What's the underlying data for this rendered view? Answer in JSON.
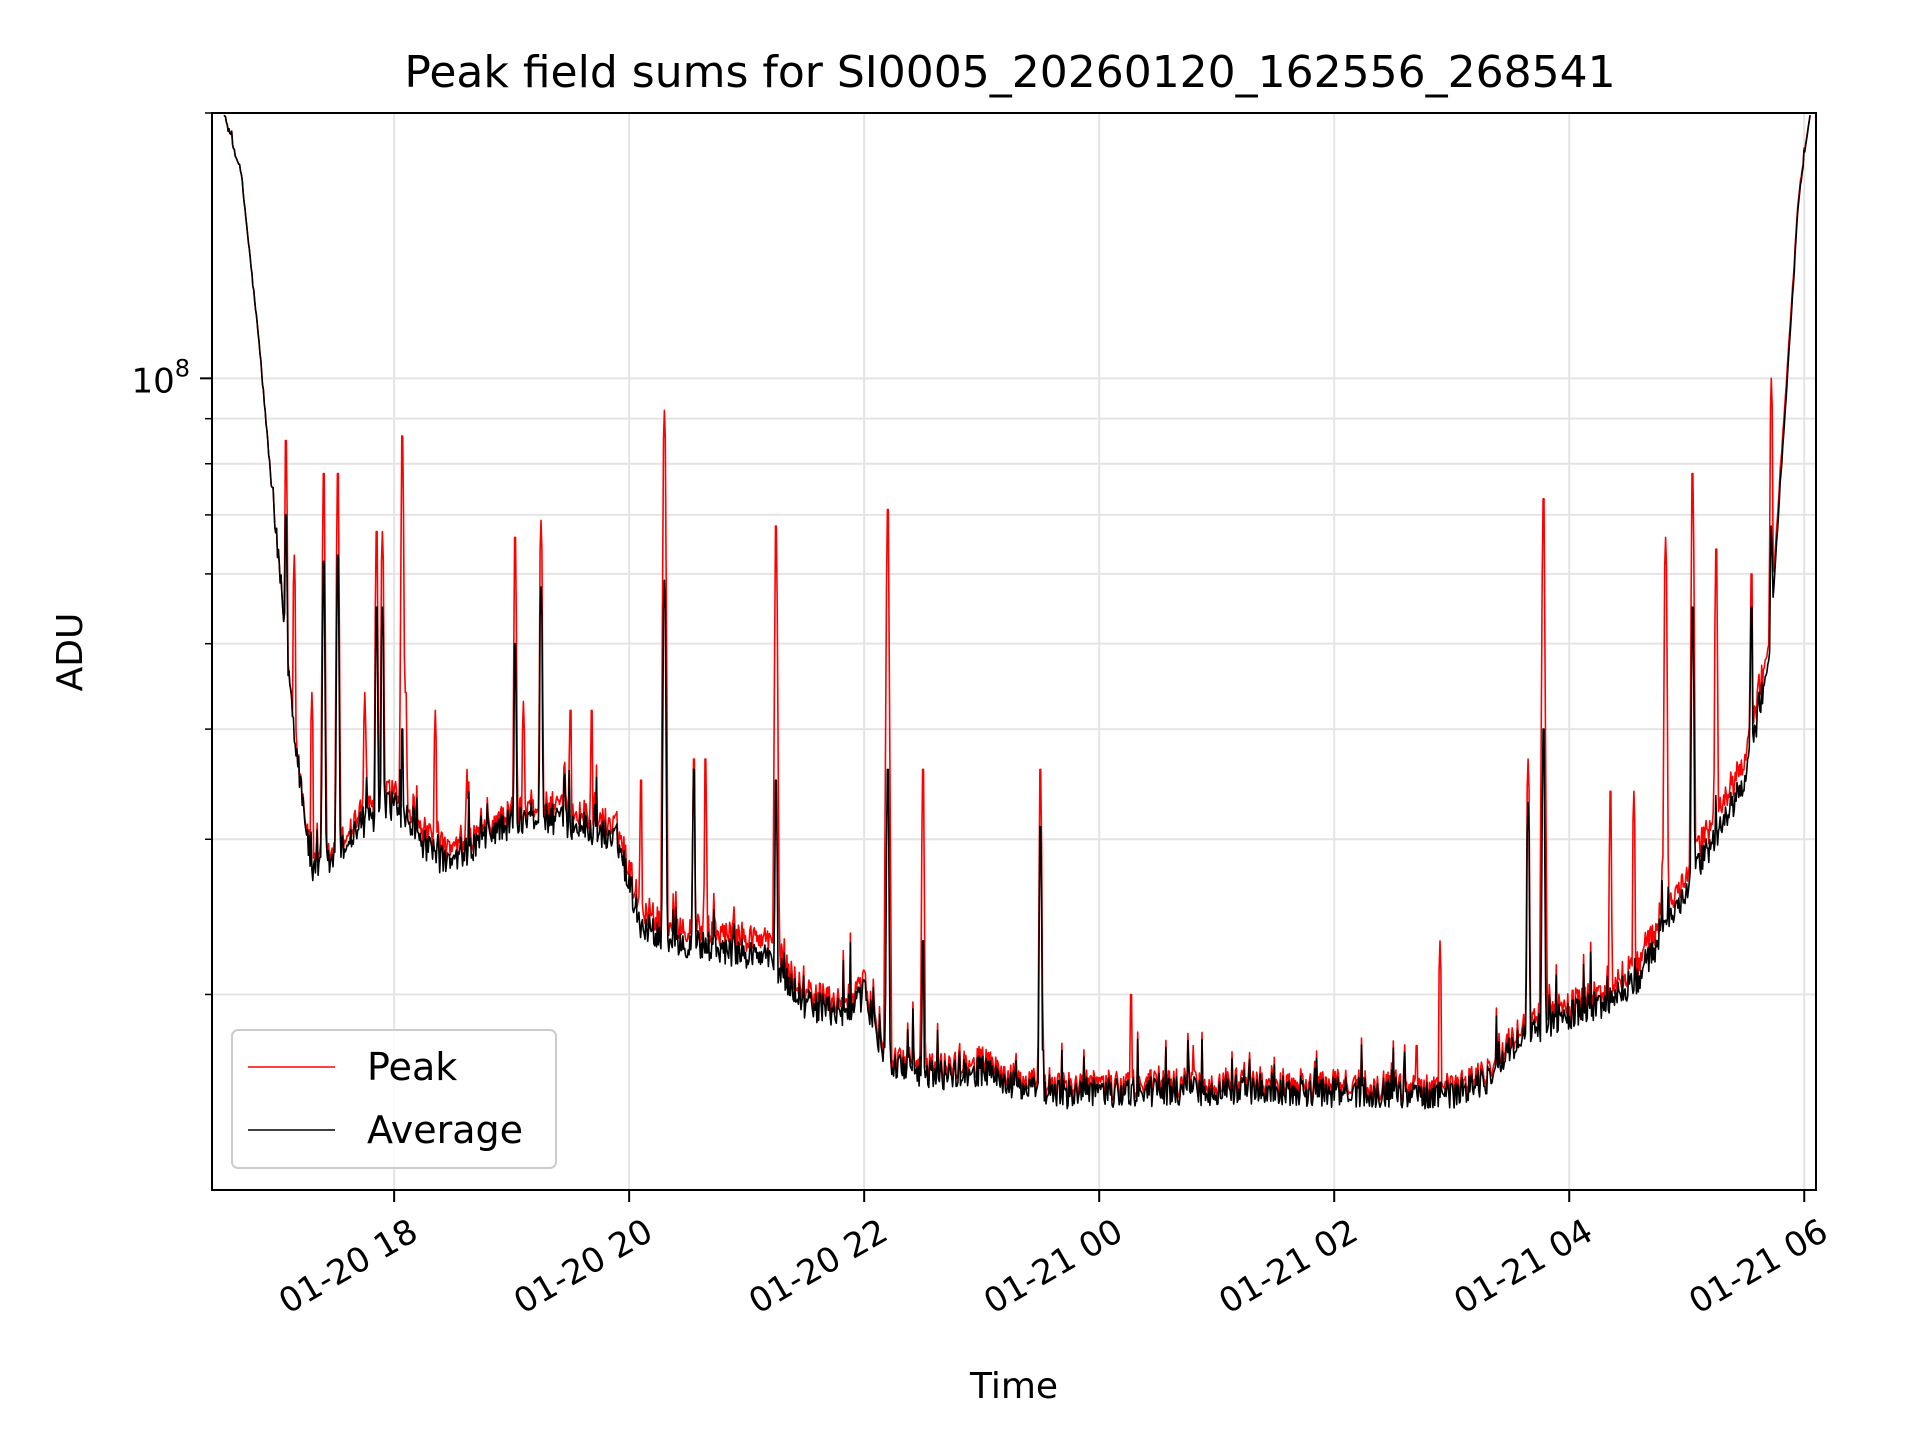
{
  "chart_data": {
    "type": "line",
    "title": "Peak field sums for SI0005_20260120_162556_268541",
    "xlabel": "Time",
    "ylabel": "ADU",
    "yscale": "log",
    "ylim": [
      12000000,
      200000000
    ],
    "xlim_hours": [
      16.45,
      30.1
    ],
    "grid": true,
    "legend_position": "lower-left",
    "x_ticks": [
      {
        "hour": 18,
        "label": "01-20 18"
      },
      {
        "hour": 20,
        "label": "01-20 20"
      },
      {
        "hour": 22,
        "label": "01-20 22"
      },
      {
        "hour": 24,
        "label": "01-21 00"
      },
      {
        "hour": 26,
        "label": "01-21 02"
      },
      {
        "hour": 28,
        "label": "01-21 04"
      },
      {
        "hour": 30,
        "label": "01-21 06"
      }
    ],
    "y_major_ticks": [
      {
        "value": 100000000,
        "label_base": "10",
        "label_exp": "8"
      }
    ],
    "y_minor_ticks": [
      20000000,
      30000000,
      40000000,
      50000000,
      60000000,
      70000000,
      80000000,
      90000000,
      200000000
    ],
    "series": [
      {
        "name": "Peak",
        "color": "#ff0000",
        "baseline": [
          [
            16.55,
            200000000
          ],
          [
            16.7,
            170000000
          ],
          [
            16.85,
            110000000
          ],
          [
            17.0,
            65000000
          ],
          [
            17.15,
            40000000
          ],
          [
            17.3,
            28000000
          ],
          [
            17.5,
            29000000
          ],
          [
            17.7,
            32000000
          ],
          [
            18.0,
            34000000
          ],
          [
            18.3,
            30000000
          ],
          [
            18.5,
            29000000
          ],
          [
            18.8,
            31000000
          ],
          [
            19.2,
            33000000
          ],
          [
            19.6,
            32000000
          ],
          [
            19.9,
            31000000
          ],
          [
            20.1,
            25000000
          ],
          [
            20.4,
            24000000
          ],
          [
            20.8,
            23500000
          ],
          [
            21.2,
            23000000
          ],
          [
            21.5,
            20000000
          ],
          [
            21.8,
            19500000
          ],
          [
            22.0,
            20500000
          ],
          [
            22.2,
            17000000
          ],
          [
            22.6,
            16500000
          ],
          [
            23.0,
            16800000
          ],
          [
            23.3,
            16000000
          ],
          [
            23.6,
            15700000
          ],
          [
            24.0,
            15800000
          ],
          [
            24.5,
            15800000
          ],
          [
            25.0,
            15900000
          ],
          [
            25.5,
            15900000
          ],
          [
            26.0,
            15800000
          ],
          [
            26.5,
            15800000
          ],
          [
            27.0,
            15700000
          ],
          [
            27.3,
            16300000
          ],
          [
            27.6,
            18500000
          ],
          [
            27.8,
            19000000
          ],
          [
            28.0,
            19500000
          ],
          [
            28.3,
            20000000
          ],
          [
            28.6,
            22000000
          ],
          [
            28.9,
            26000000
          ],
          [
            29.2,
            31000000
          ],
          [
            29.5,
            37000000
          ],
          [
            29.7,
            50000000
          ],
          [
            29.85,
            100000000
          ],
          [
            29.95,
            160000000
          ],
          [
            30.05,
            200000000
          ]
        ],
        "spikes": [
          [
            17.08,
            85000000
          ],
          [
            17.15,
            63000000
          ],
          [
            17.3,
            44000000
          ],
          [
            17.4,
            78000000
          ],
          [
            17.52,
            78000000
          ],
          [
            17.75,
            44000000
          ],
          [
            17.85,
            67000000
          ],
          [
            17.9,
            67000000
          ],
          [
            18.07,
            86000000
          ],
          [
            18.1,
            44000000
          ],
          [
            18.35,
            42000000
          ],
          [
            18.62,
            36000000
          ],
          [
            19.03,
            66000000
          ],
          [
            19.1,
            43000000
          ],
          [
            19.25,
            69000000
          ],
          [
            19.5,
            42000000
          ],
          [
            19.68,
            42000000
          ],
          [
            20.1,
            35000000
          ],
          [
            20.3,
            92000000
          ],
          [
            20.55,
            37000000
          ],
          [
            20.65,
            37000000
          ],
          [
            21.25,
            68000000
          ],
          [
            22.2,
            71000000
          ],
          [
            22.5,
            36000000
          ],
          [
            23.5,
            36000000
          ],
          [
            24.27,
            20000000
          ],
          [
            24.8,
            17500000
          ],
          [
            26.7,
            17500000
          ],
          [
            26.9,
            23000000
          ],
          [
            27.65,
            37000000
          ],
          [
            27.78,
            73000000
          ],
          [
            28.35,
            34000000
          ],
          [
            28.55,
            34000000
          ],
          [
            28.82,
            66000000
          ],
          [
            29.05,
            78000000
          ],
          [
            29.25,
            64000000
          ],
          [
            29.55,
            60000000
          ],
          [
            29.72,
            100000000
          ]
        ]
      },
      {
        "name": "Average",
        "color": "#000000",
        "baseline": [
          [
            16.55,
            200000000
          ],
          [
            16.7,
            170000000
          ],
          [
            16.85,
            110000000
          ],
          [
            17.0,
            65000000
          ],
          [
            17.15,
            40000000
          ],
          [
            17.3,
            27500000
          ],
          [
            17.5,
            28500000
          ],
          [
            17.7,
            31000000
          ],
          [
            18.0,
            33000000
          ],
          [
            18.3,
            29000000
          ],
          [
            18.5,
            28000000
          ],
          [
            18.8,
            30500000
          ],
          [
            19.2,
            32000000
          ],
          [
            19.6,
            31000000
          ],
          [
            19.9,
            30000000
          ],
          [
            20.1,
            24000000
          ],
          [
            20.4,
            23000000
          ],
          [
            20.8,
            22500000
          ],
          [
            21.2,
            22000000
          ],
          [
            21.5,
            19500000
          ],
          [
            21.8,
            19000000
          ],
          [
            22.0,
            20000000
          ],
          [
            22.2,
            16700000
          ],
          [
            22.6,
            16200000
          ],
          [
            23.0,
            16400000
          ],
          [
            23.3,
            15700000
          ],
          [
            23.6,
            15400000
          ],
          [
            24.0,
            15500000
          ],
          [
            24.5,
            15500000
          ],
          [
            25.0,
            15600000
          ],
          [
            25.5,
            15600000
          ],
          [
            26.0,
            15500000
          ],
          [
            26.5,
            15500000
          ],
          [
            27.0,
            15400000
          ],
          [
            27.3,
            16000000
          ],
          [
            27.6,
            18000000
          ],
          [
            27.8,
            18500000
          ],
          [
            28.0,
            19000000
          ],
          [
            28.3,
            19500000
          ],
          [
            28.6,
            21000000
          ],
          [
            28.9,
            25000000
          ],
          [
            29.2,
            29500000
          ],
          [
            29.5,
            35000000
          ],
          [
            29.7,
            48000000
          ],
          [
            29.85,
            97000000
          ],
          [
            29.95,
            158000000
          ],
          [
            30.05,
            200000000
          ]
        ],
        "spikes": [
          [
            17.08,
            70000000
          ],
          [
            17.4,
            62000000
          ],
          [
            17.52,
            63000000
          ],
          [
            17.85,
            55000000
          ],
          [
            17.9,
            55000000
          ],
          [
            18.07,
            40000000
          ],
          [
            19.03,
            50000000
          ],
          [
            19.25,
            58000000
          ],
          [
            20.3,
            59000000
          ],
          [
            20.55,
            36000000
          ],
          [
            21.25,
            35000000
          ],
          [
            22.2,
            36000000
          ],
          [
            22.5,
            23000000
          ],
          [
            23.5,
            31000000
          ],
          [
            27.65,
            33000000
          ],
          [
            27.78,
            40000000
          ],
          [
            29.05,
            55000000
          ],
          [
            29.55,
            55000000
          ],
          [
            29.72,
            68000000
          ]
        ]
      }
    ]
  }
}
